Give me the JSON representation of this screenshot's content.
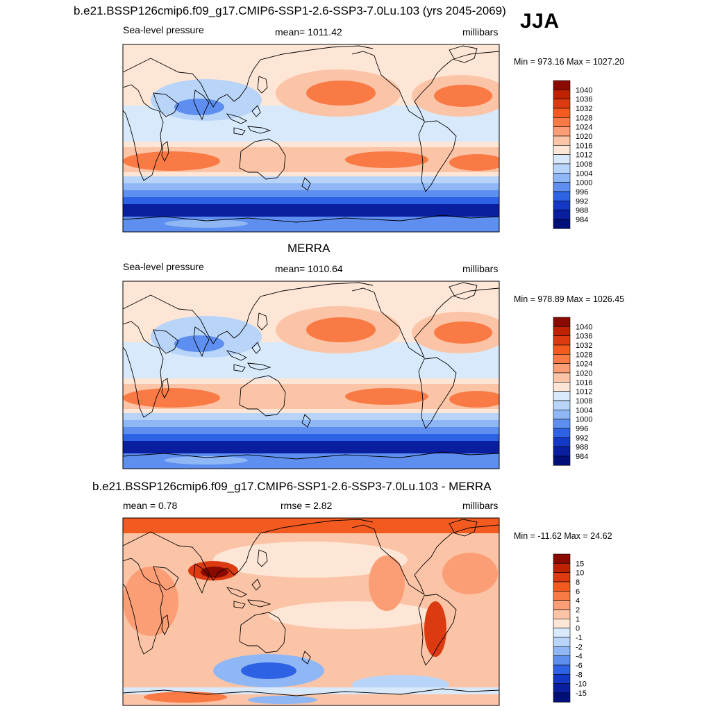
{
  "season": "JJA",
  "panels": [
    {
      "title": "b.e21.BSSP126cmip6.f09_g17.CMIP6-SSP1-2.6-SSP3-7.0Lu.103 (yrs 2045-2069)",
      "left_label": "Sea-level pressure",
      "center_label": "mean= 1011.42",
      "right_label": "millibars",
      "min_max": "Min = 973.16 Max = 1027.20",
      "colorbar_labels": [
        "1040",
        "1036",
        "1032",
        "1028",
        "1024",
        "1020",
        "1016",
        "1012",
        "1008",
        "1004",
        "1000",
        "996",
        "992",
        "988",
        "984"
      ],
      "colorbar_colors": [
        "#8b0a00",
        "#bf2200",
        "#dc3a10",
        "#f25a20",
        "#fa7a45",
        "#fb9e75",
        "#fcc4a6",
        "#fee6d6",
        "#d8e9fb",
        "#b8d4f8",
        "#8fb7f5",
        "#5e8ff0",
        "#2e62e4",
        "#1438c6",
        "#0a1ea0",
        "#001078"
      ]
    },
    {
      "title": "MERRA",
      "left_label": "Sea-level pressure",
      "center_label": "mean= 1010.64",
      "right_label": "millibars",
      "min_max": "Min = 978.89 Max = 1026.45",
      "colorbar_labels": [
        "1040",
        "1036",
        "1032",
        "1028",
        "1024",
        "1020",
        "1016",
        "1012",
        "1008",
        "1004",
        "1000",
        "996",
        "992",
        "988",
        "984"
      ],
      "colorbar_colors": [
        "#8b0a00",
        "#bf2200",
        "#dc3a10",
        "#f25a20",
        "#fa7a45",
        "#fb9e75",
        "#fcc4a6",
        "#fee6d6",
        "#d8e9fb",
        "#b8d4f8",
        "#8fb7f5",
        "#5e8ff0",
        "#2e62e4",
        "#1438c6",
        "#0a1ea0",
        "#001078"
      ]
    },
    {
      "title": "b.e21.BSSP126cmip6.f09_g17.CMIP6-SSP1-2.6-SSP3-7.0Lu.103 - MERRA",
      "left_label": "mean =   0.78",
      "center_label": "rmse =   2.82",
      "right_label": "millibars",
      "min_max": "Min = -11.62 Max =  24.62",
      "colorbar_labels": [
        "15",
        "10",
        "8",
        "6",
        "4",
        "2",
        "1",
        "0",
        "-1",
        "-2",
        "-4",
        "-6",
        "-8",
        "-10",
        "-15"
      ],
      "colorbar_colors": [
        "#8b0a00",
        "#bf2200",
        "#dc3a10",
        "#f25a20",
        "#fa7a45",
        "#fb9e75",
        "#fcc4a6",
        "#fee6d6",
        "#d8e9fb",
        "#b8d4f8",
        "#8fb7f5",
        "#5e8ff0",
        "#2e62e4",
        "#1438c6",
        "#0a1ea0",
        "#001078"
      ]
    }
  ]
}
